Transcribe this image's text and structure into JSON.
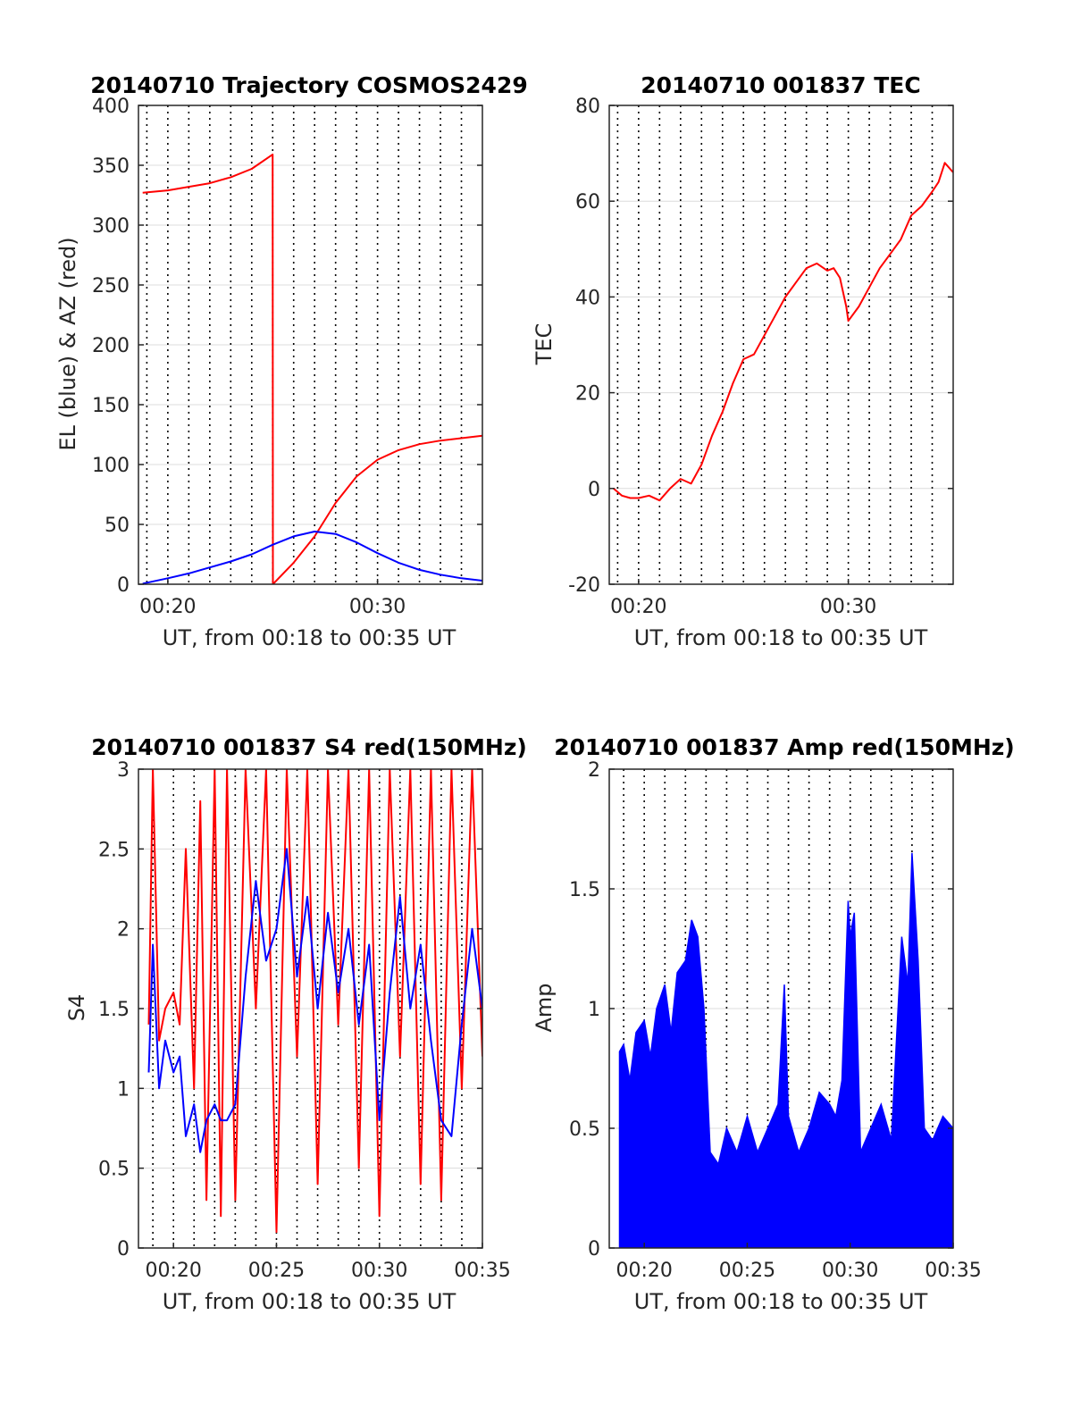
{
  "chart_data": [
    {
      "type": "line",
      "title": "20140710 Trajectory COSMOS2429",
      "xlabel": "UT, from 00:18 to 00:35 UT",
      "ylabel": "EL (blue) & AZ (red)",
      "xlim": [
        18.6,
        35
      ],
      "ylim": [
        0,
        400
      ],
      "xticks": [
        {
          "v": 20,
          "label": "00:20"
        },
        {
          "v": 30,
          "label": "00:30"
        }
      ],
      "yticks": [
        {
          "v": 0,
          "label": "0"
        },
        {
          "v": 50,
          "label": "50"
        },
        {
          "v": 100,
          "label": "100"
        },
        {
          "v": 150,
          "label": "150"
        },
        {
          "v": 200,
          "label": "200"
        },
        {
          "v": 250,
          "label": "250"
        },
        {
          "v": 300,
          "label": "300"
        },
        {
          "v": 350,
          "label": "350"
        },
        {
          "v": 400,
          "label": "400"
        }
      ],
      "vlines": [
        19,
        20,
        21,
        22,
        23,
        24,
        25,
        26,
        27,
        28,
        29,
        30,
        31,
        32,
        33,
        34
      ],
      "series": [
        {
          "color": "#ff0000",
          "x": [
            18.8,
            20,
            21,
            22,
            23,
            24,
            25,
            25.01,
            26,
            27,
            28,
            29,
            30,
            31,
            32,
            33,
            34,
            35
          ],
          "values": [
            327,
            329,
            332,
            335,
            340,
            347,
            359,
            0,
            18,
            40,
            68,
            90,
            104,
            112,
            117,
            120,
            122,
            124
          ]
        },
        {
          "color": "#0000ff",
          "x": [
            18.8,
            20,
            21,
            22,
            23,
            24,
            25,
            26,
            27,
            28,
            29,
            30,
            31,
            32,
            33,
            34,
            35
          ],
          "values": [
            0.5,
            5,
            9,
            14,
            19,
            25,
            33,
            40,
            44,
            42,
            35,
            26,
            18,
            12,
            8,
            5,
            3
          ]
        }
      ]
    },
    {
      "type": "line",
      "title": "20140710 001837 TEC",
      "xlabel": "UT, from 00:18 to 00:35 UT",
      "ylabel": "TEC",
      "xlim": [
        18.6,
        35
      ],
      "ylim": [
        -20,
        80
      ],
      "xticks": [
        {
          "v": 20,
          "label": "00:20"
        },
        {
          "v": 30,
          "label": "00:30"
        }
      ],
      "yticks": [
        {
          "v": -20,
          "label": "-20"
        },
        {
          "v": 0,
          "label": "0"
        },
        {
          "v": 20,
          "label": "20"
        },
        {
          "v": 40,
          "label": "40"
        },
        {
          "v": 60,
          "label": "60"
        },
        {
          "v": 80,
          "label": "80"
        }
      ],
      "vlines": [
        19,
        20,
        21,
        22,
        23,
        24,
        25,
        26,
        27,
        28,
        29,
        30,
        31,
        32,
        33,
        34
      ],
      "series": [
        {
          "color": "#ff0000",
          "x": [
            18.8,
            19.2,
            19.6,
            20.0,
            20.5,
            21.0,
            21.5,
            22.0,
            22.5,
            23.0,
            23.5,
            24.0,
            24.5,
            25.0,
            25.5,
            26.0,
            26.5,
            27.0,
            27.5,
            28.0,
            28.5,
            29.0,
            29.3,
            29.6,
            29.9,
            30.0,
            30.5,
            31.0,
            31.5,
            32.0,
            32.5,
            33.0,
            33.5,
            34.0,
            34.3,
            34.6,
            35.0
          ],
          "values": [
            0,
            -1.5,
            -2,
            -2,
            -1.5,
            -2.5,
            0,
            2,
            1,
            5,
            11,
            16,
            22,
            27,
            28,
            32,
            36,
            40,
            43,
            46,
            47,
            45.5,
            46,
            44,
            38,
            35,
            38,
            42,
            46,
            49,
            52,
            57,
            59,
            62,
            64,
            68,
            66
          ]
        }
      ]
    },
    {
      "type": "line",
      "title": "20140710 001837 S4 red(150MHz)",
      "xlabel": "UT, from 00:18 to 00:35 UT",
      "ylabel": "S4",
      "xlim": [
        18.3,
        35
      ],
      "ylim": [
        0,
        3
      ],
      "xticks": [
        {
          "v": 20,
          "label": "00:20"
        },
        {
          "v": 25,
          "label": "00:25"
        },
        {
          "v": 30,
          "label": "00:30"
        },
        {
          "v": 35,
          "label": "00:35"
        }
      ],
      "yticks": [
        {
          "v": 0,
          "label": "0"
        },
        {
          "v": 0.5,
          "label": "0.5"
        },
        {
          "v": 1,
          "label": "1"
        },
        {
          "v": 1.5,
          "label": "1.5"
        },
        {
          "v": 2,
          "label": "2"
        },
        {
          "v": 2.5,
          "label": "2.5"
        },
        {
          "v": 3,
          "label": "3"
        }
      ],
      "vlines": [
        19,
        20,
        21,
        22,
        23,
        24,
        25,
        26,
        27,
        28,
        29,
        30,
        31,
        32,
        33,
        34
      ],
      "series": [
        {
          "color": "#ff0000",
          "x": [
            18.8,
            19.0,
            19.3,
            19.6,
            20.0,
            20.3,
            20.6,
            21.0,
            21.3,
            21.6,
            22.0,
            22.3,
            22.6,
            23.0,
            23.5,
            24.0,
            24.5,
            25.0,
            25.5,
            26.0,
            26.5,
            27.0,
            27.5,
            28.0,
            28.5,
            29.0,
            29.5,
            30.0,
            30.5,
            31.0,
            31.5,
            32.0,
            32.5,
            33.0,
            33.5,
            34.0,
            34.5,
            35.0
          ],
          "values": [
            1.4,
            3,
            1.3,
            1.5,
            1.6,
            1.4,
            2.5,
            1.0,
            2.8,
            0.3,
            3,
            0.2,
            3,
            0.3,
            3,
            1.5,
            3,
            0.1,
            3,
            1.2,
            3,
            0.4,
            3,
            1.4,
            3,
            0.5,
            3,
            0.2,
            3,
            1.2,
            3,
            0.4,
            3,
            0.3,
            3,
            1.0,
            3,
            1.2
          ]
        },
        {
          "color": "#0000ff",
          "x": [
            18.8,
            19.0,
            19.3,
            19.6,
            20.0,
            20.3,
            20.6,
            21.0,
            21.3,
            21.6,
            22.0,
            22.3,
            22.6,
            23.0,
            23.5,
            24.0,
            24.5,
            25.0,
            25.5,
            26.0,
            26.5,
            27.0,
            27.5,
            28.0,
            28.5,
            29.0,
            29.5,
            30.0,
            30.5,
            31.0,
            31.5,
            32.0,
            32.5,
            33.0,
            33.5,
            34.0,
            34.5,
            35.0
          ],
          "values": [
            1.1,
            1.9,
            1.0,
            1.3,
            1.1,
            1.2,
            0.7,
            0.9,
            0.6,
            0.8,
            0.9,
            0.8,
            0.8,
            0.9,
            1.7,
            2.3,
            1.8,
            2.0,
            2.5,
            1.7,
            2.2,
            1.5,
            2.1,
            1.6,
            2.0,
            1.4,
            1.9,
            0.8,
            1.6,
            2.2,
            1.5,
            1.9,
            1.3,
            0.8,
            0.7,
            1.4,
            2.0,
            1.5
          ]
        }
      ]
    },
    {
      "type": "line",
      "title": "20140710 001837 Amp red(150MHz)",
      "xlabel": "UT, from 00:18 to 00:35 UT",
      "ylabel": "Amp",
      "xlim": [
        18.3,
        35
      ],
      "ylim": [
        0,
        2
      ],
      "xticks": [
        {
          "v": 20,
          "label": "00:20"
        },
        {
          "v": 25,
          "label": "00:25"
        },
        {
          "v": 30,
          "label": "00:30"
        },
        {
          "v": 35,
          "label": "00:35"
        }
      ],
      "yticks": [
        {
          "v": 0,
          "label": "0"
        },
        {
          "v": 0.5,
          "label": "0.5"
        },
        {
          "v": 1,
          "label": "1"
        },
        {
          "v": 1.5,
          "label": "1.5"
        },
        {
          "v": 2,
          "label": "2"
        }
      ],
      "vlines": [
        19,
        20,
        21,
        22,
        23,
        24,
        25,
        26,
        27,
        28,
        29,
        30,
        31,
        32,
        33,
        34
      ],
      "fill_to_zero": true,
      "series": [
        {
          "color": "#0000ff",
          "x": [
            18.8,
            19.0,
            19.3,
            19.6,
            20.0,
            20.3,
            20.6,
            21.0,
            21.3,
            21.6,
            22.0,
            22.3,
            22.6,
            22.9,
            23.2,
            23.6,
            24.0,
            24.5,
            25.0,
            25.5,
            26.0,
            26.5,
            26.8,
            27.0,
            27.5,
            28.0,
            28.5,
            29.0,
            29.3,
            29.6,
            29.9,
            30.0,
            30.2,
            30.5,
            31.0,
            31.5,
            32.0,
            32.5,
            32.8,
            33.0,
            33.3,
            33.6,
            34.0,
            34.5,
            35.0
          ],
          "values": [
            0.82,
            0.85,
            0.7,
            0.9,
            0.95,
            0.8,
            1.0,
            1.1,
            0.9,
            1.15,
            1.2,
            1.37,
            1.3,
            1.0,
            0.4,
            0.35,
            0.5,
            0.4,
            0.55,
            0.4,
            0.5,
            0.6,
            1.1,
            0.55,
            0.4,
            0.5,
            0.65,
            0.6,
            0.55,
            0.7,
            1.45,
            1.3,
            1.4,
            0.4,
            0.5,
            0.6,
            0.45,
            1.3,
            1.1,
            1.65,
            1.2,
            0.5,
            0.45,
            0.55,
            0.5
          ]
        }
      ]
    }
  ]
}
